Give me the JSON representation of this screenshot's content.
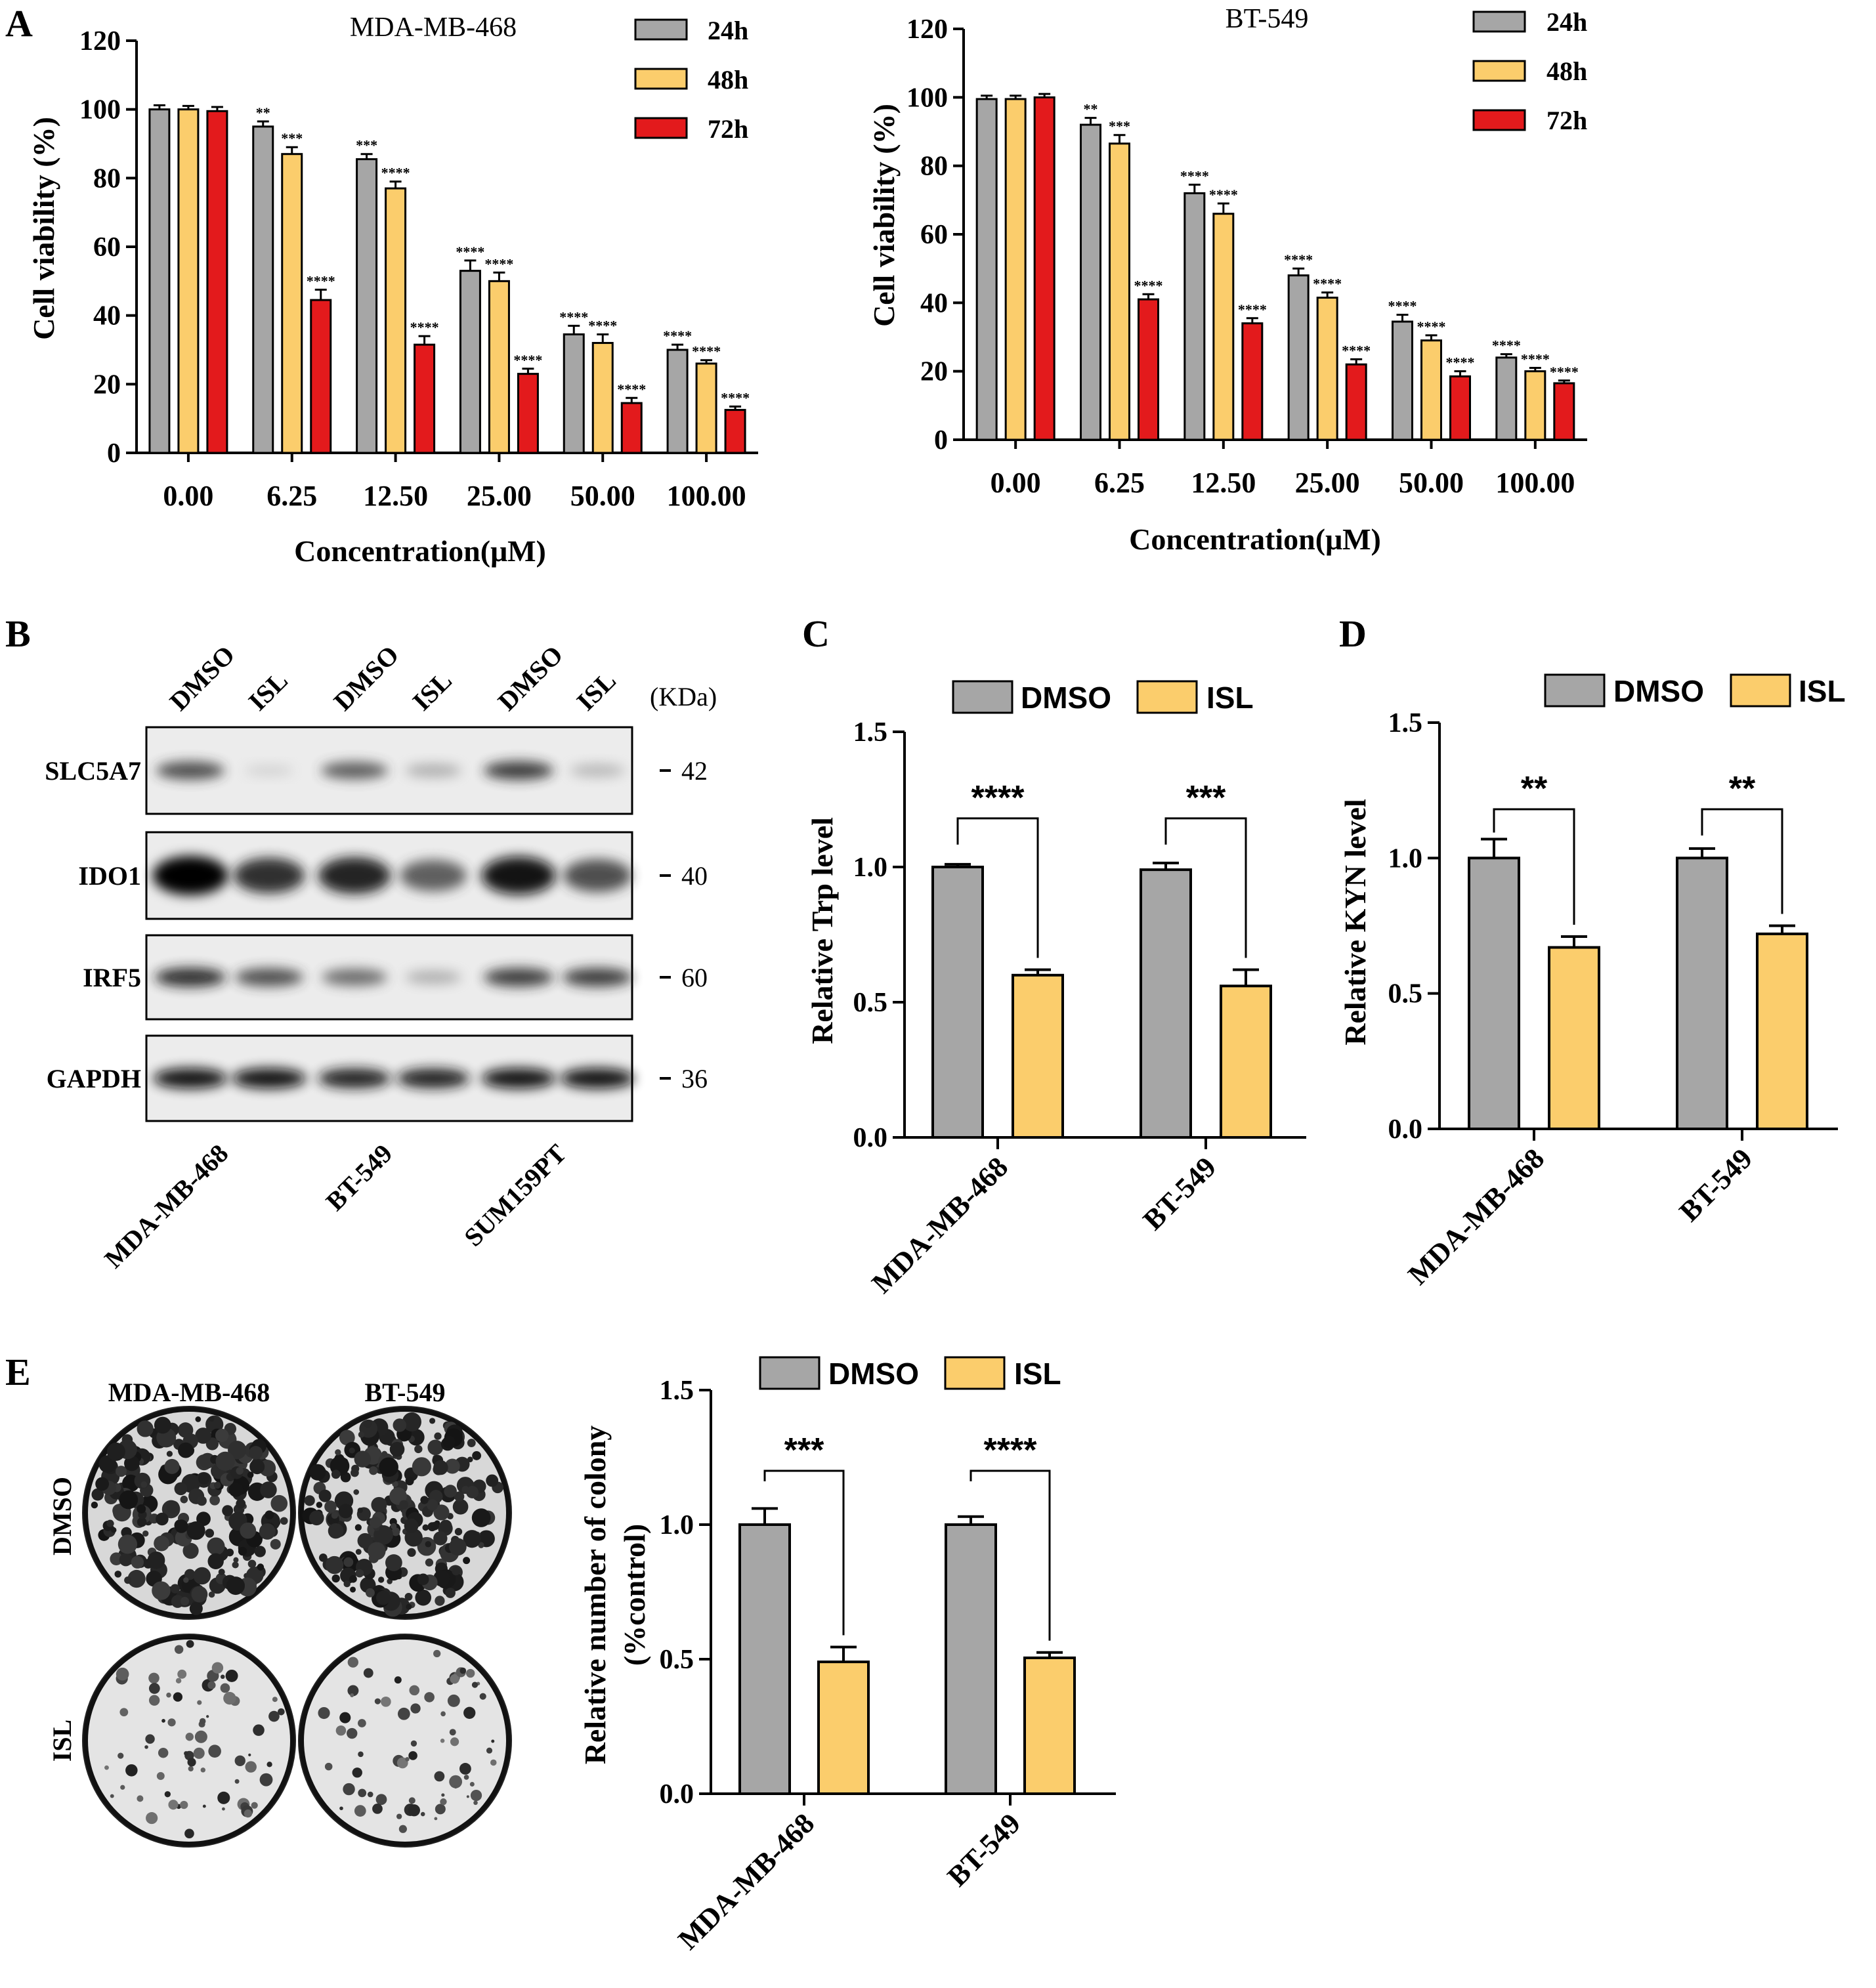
{
  "colors": {
    "c24h": "#a6a6a6",
    "c48h": "#fbcd6c",
    "c72h": "#e31a1c",
    "dmso": "#a6a6a6",
    "isl": "#fbcd6c"
  },
  "panels": {
    "A": "A",
    "B": "B",
    "C": "C",
    "D": "D",
    "E": "E"
  },
  "chart_data": [
    {
      "id": "A1",
      "type": "bar",
      "title": "MDA-MB-468",
      "xlabel": "Concentration(μM)",
      "ylabel": "Cell viability (%)",
      "ylim": [
        0,
        120
      ],
      "yticks": [
        "0",
        "20",
        "40",
        "60",
        "80",
        "100",
        "120"
      ],
      "categories": [
        "0.00",
        "6.25",
        "12.50",
        "25.00",
        "50.00",
        "100.00"
      ],
      "series": [
        {
          "name": "24h",
          "values": [
            100,
            95,
            85.5,
            53,
            34.5,
            30
          ],
          "errors": [
            1.2,
            1.5,
            1.5,
            3,
            2.5,
            1.5
          ],
          "sig": [
            "",
            "**",
            "***",
            "****",
            "****",
            "****"
          ]
        },
        {
          "name": "48h",
          "values": [
            100,
            87,
            77,
            50,
            32,
            26
          ],
          "errors": [
            1,
            2,
            2,
            2.5,
            2.5,
            1
          ],
          "sig": [
            "",
            "***",
            "****",
            "****",
            "****",
            "****"
          ]
        },
        {
          "name": "72h",
          "values": [
            99.5,
            44.5,
            31.5,
            23,
            14.5,
            12.5
          ],
          "errors": [
            1.2,
            3,
            2.5,
            1.5,
            1.5,
            1
          ],
          "sig": [
            "",
            "****",
            "****",
            "****",
            "****",
            "****"
          ]
        }
      ],
      "legend": "top-right"
    },
    {
      "id": "A2",
      "type": "bar",
      "title": "BT-549",
      "xlabel": "Concentration(μM)",
      "ylabel": "Cell viability (%)",
      "ylim": [
        0,
        120
      ],
      "yticks": [
        "0",
        "20",
        "40",
        "60",
        "80",
        "100",
        "120"
      ],
      "categories": [
        "0.00",
        "6.25",
        "12.50",
        "25.00",
        "50.00",
        "100.00"
      ],
      "series": [
        {
          "name": "24h",
          "values": [
            99.5,
            92,
            72,
            48,
            34.5,
            24
          ],
          "errors": [
            1,
            2,
            2.5,
            2,
            2,
            1
          ],
          "sig": [
            "",
            "**",
            "****",
            "****",
            "****",
            "****"
          ]
        },
        {
          "name": "48h",
          "values": [
            99.5,
            86.5,
            66,
            41.5,
            29,
            20
          ],
          "errors": [
            1,
            2.5,
            3,
            1.5,
            1.5,
            1
          ],
          "sig": [
            "",
            "***",
            "****",
            "****",
            "****",
            "****"
          ]
        },
        {
          "name": "72h",
          "values": [
            100,
            41,
            34,
            22,
            18.5,
            16.5
          ],
          "errors": [
            1,
            1.5,
            1.5,
            1.5,
            1.5,
            0.8
          ],
          "sig": [
            "",
            "****",
            "****",
            "****",
            "****",
            "****"
          ]
        }
      ],
      "legend": "top-right"
    },
    {
      "id": "C",
      "type": "bar",
      "ylabel": "Relative Trp level",
      "ylim": [
        0,
        1.5
      ],
      "yticks": [
        "0.0",
        "0.5",
        "1.0",
        "1.5"
      ],
      "categories": [
        "MDA-MB-468",
        "BT-549"
      ],
      "series": [
        {
          "name": "DMSO",
          "values": [
            1.0,
            0.99
          ],
          "errors": [
            0.01,
            0.025
          ]
        },
        {
          "name": "ISL",
          "values": [
            0.6,
            0.56
          ],
          "errors": [
            0.02,
            0.06
          ]
        }
      ],
      "significance": [
        "****",
        "***"
      ],
      "legend": "top"
    },
    {
      "id": "D",
      "type": "bar",
      "ylabel": "Relative KYN level",
      "ylim": [
        0,
        1.5
      ],
      "yticks": [
        "0.0",
        "0.5",
        "1.0",
        "1.5"
      ],
      "categories": [
        "MDA-MB-468",
        "BT-549"
      ],
      "series": [
        {
          "name": "DMSO",
          "values": [
            1.0,
            1.0
          ],
          "errors": [
            0.07,
            0.035
          ]
        },
        {
          "name": "ISL",
          "values": [
            0.67,
            0.72
          ],
          "errors": [
            0.04,
            0.03
          ]
        }
      ],
      "significance": [
        "**",
        "**"
      ],
      "legend": "top"
    },
    {
      "id": "E",
      "type": "bar",
      "ylabel_line1": "Relative number of colony",
      "ylabel_line2": "(%control)",
      "ylim": [
        0,
        1.5
      ],
      "yticks": [
        "0.0",
        "0.5",
        "1.0",
        "1.5"
      ],
      "categories": [
        "MDA-MB-468",
        "BT-549"
      ],
      "series": [
        {
          "name": "DMSO",
          "values": [
            1.0,
            1.0
          ],
          "errors": [
            0.06,
            0.03
          ]
        },
        {
          "name": "ISL",
          "values": [
            0.49,
            0.505
          ],
          "errors": [
            0.055,
            0.02
          ]
        }
      ],
      "significance": [
        "***",
        "****"
      ],
      "legend": "top"
    }
  ],
  "western_blot": {
    "lanes": [
      "DMSO",
      "ISL",
      "DMSO",
      "ISL",
      "DMSO",
      "ISL"
    ],
    "kda_header": "(KDa)",
    "rows": [
      {
        "protein": "SLC5A7",
        "kda": "42",
        "intensity": [
          0.75,
          0.12,
          0.7,
          0.35,
          0.8,
          0.3
        ]
      },
      {
        "protein": "IDO1",
        "kda": "40",
        "intensity": [
          1.0,
          0.85,
          0.9,
          0.7,
          0.95,
          0.75
        ]
      },
      {
        "protein": "IRF5",
        "kda": "60",
        "intensity": [
          0.85,
          0.75,
          0.65,
          0.35,
          0.8,
          0.8
        ]
      },
      {
        "protein": "GAPDH",
        "kda": "36",
        "intensity": [
          0.95,
          0.95,
          0.9,
          0.9,
          0.95,
          0.95
        ]
      }
    ],
    "cell_lines": [
      "MDA-MB-468",
      "BT-549",
      "SUM159PT"
    ]
  },
  "colony_assay": {
    "column_labels": [
      "MDA-MB-468",
      "BT-549"
    ],
    "row_labels": [
      "DMSO",
      "ISL"
    ]
  }
}
